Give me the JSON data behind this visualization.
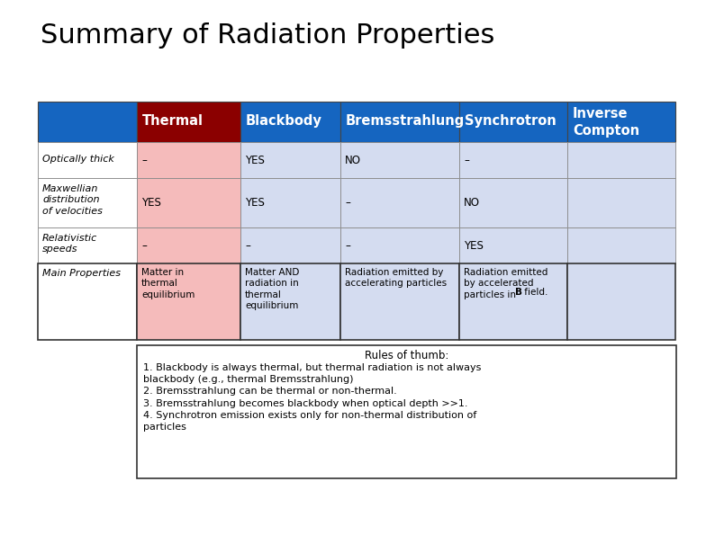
{
  "title": "Summary of Radiation Properties",
  "title_fontsize": 22,
  "background_color": "#ffffff",
  "header_bg_blue": "#1565C0",
  "header_bg_red": "#8B0000",
  "thermal_col_bg": "#F5BBBB",
  "other_col_bg": "#D4DCF0",
  "row_label_bg": "#ffffff",
  "grid_line_color": "#888888",
  "col_headers": [
    "Thermal",
    "Blackbody",
    "Bremsstrahlung",
    "Synchrotron",
    "Inverse\nCompton"
  ],
  "row_labels": [
    "Optically thick",
    "Maxwellian\ndistribution\nof velocities",
    "Relativistic\nspeeds",
    "Main Properties"
  ],
  "table_data": [
    [
      "–",
      "YES",
      "NO",
      "–",
      ""
    ],
    [
      "YES",
      "YES",
      "–",
      "NO",
      ""
    ],
    [
      "–",
      "–",
      "–",
      "YES",
      ""
    ],
    [
      "Matter in\nthermal\nequilibrium",
      "Matter AND\nradiation in\nthermal\nequilibrium",
      "Radiation emitted by\naccelerating particles",
      "Radiation emitted\nby accelerated\nparticles in B field.",
      ""
    ]
  ],
  "rules_title": "Rules of thumb:",
  "rules_body": "1. Blackbody is always thermal, but thermal radiation is not always\nblackbody (e.g., thermal Bremsstrahlung)\n2. Bremsstrahlung can be thermal or non-thermal.\n3. Bremsstrahlung becomes blackbody when optical depth >>1.\n4. Synchrotron emission exists only for non-thermal distribution of\nparticles"
}
